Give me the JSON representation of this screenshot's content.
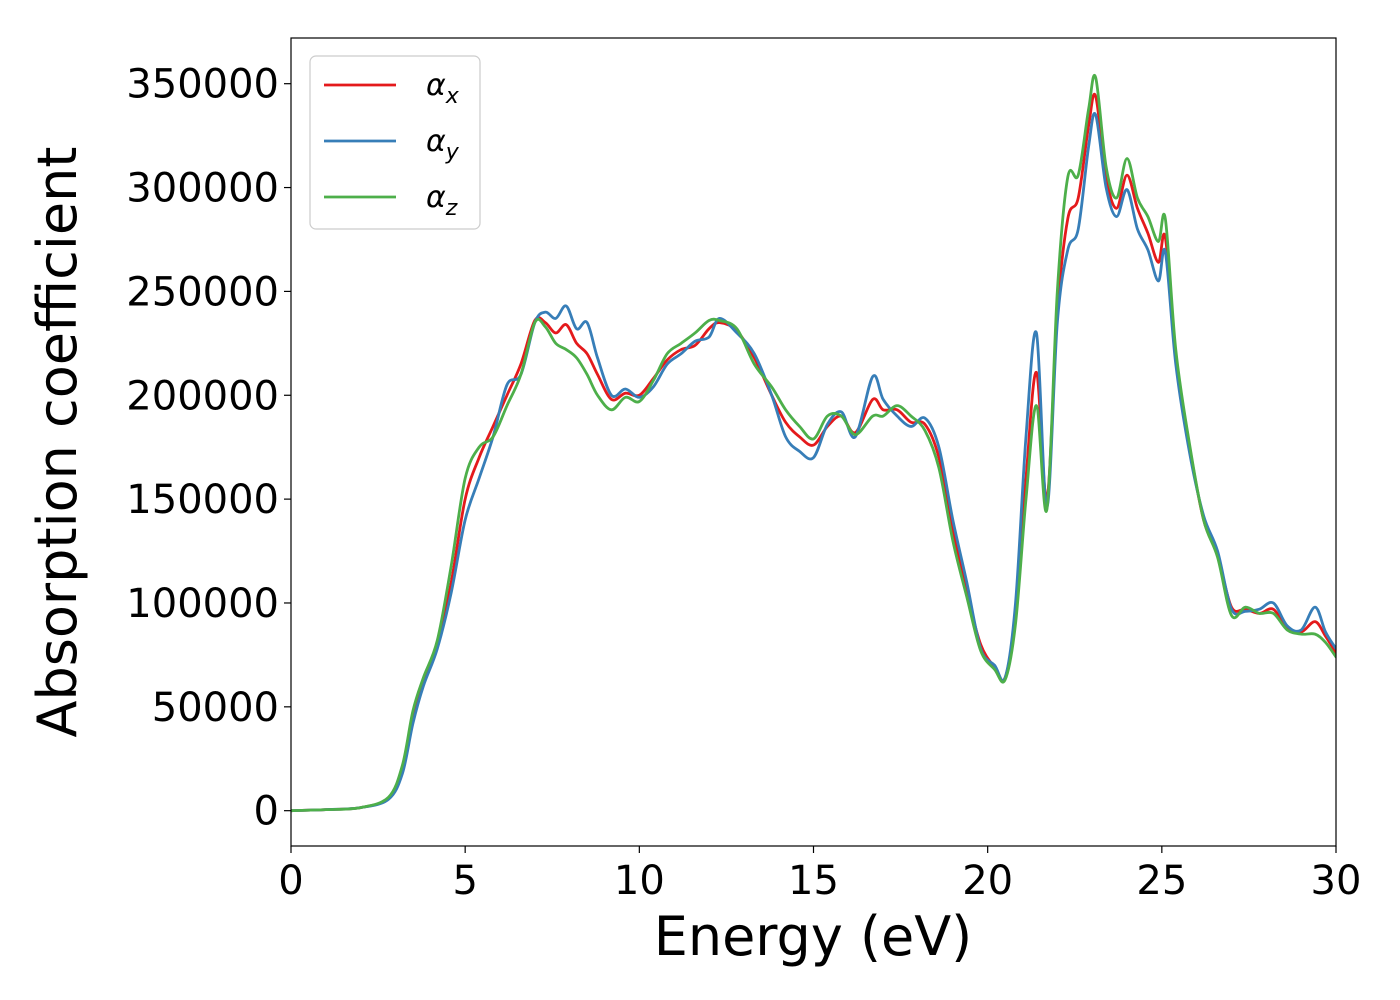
{
  "chart_data": {
    "type": "line",
    "title": "",
    "xlabel": "Energy (eV)",
    "ylabel": "Absorption coefficient",
    "xlim": [
      0,
      30
    ],
    "ylim": [
      -17000,
      372000
    ],
    "xticks": [
      0,
      5,
      10,
      15,
      20,
      25,
      30
    ],
    "xtick_labels": [
      "0",
      "5",
      "10",
      "15",
      "20",
      "25",
      "30"
    ],
    "yticks": [
      0,
      50000,
      100000,
      150000,
      200000,
      250000,
      300000,
      350000
    ],
    "ytick_labels": [
      "0",
      "50000",
      "100000",
      "150000",
      "200000",
      "250000",
      "300000",
      "350000"
    ],
    "grid": false,
    "legend_position": "upper-left",
    "series": [
      {
        "name": "α",
        "subscript": "x",
        "color": "#e41a1c",
        "x": [
          0,
          1,
          2,
          2.8,
          3.2,
          3.5,
          3.8,
          4.2,
          4.6,
          5.0,
          5.4,
          5.8,
          6.2,
          6.6,
          7.0,
          7.3,
          7.6,
          7.9,
          8.2,
          8.5,
          8.8,
          9.2,
          9.6,
          10.0,
          10.4,
          10.8,
          11.2,
          11.6,
          12.0,
          12.3,
          12.8,
          13.3,
          13.8,
          14.2,
          14.6,
          15.0,
          15.4,
          15.8,
          16.2,
          16.7,
          17.0,
          17.4,
          17.8,
          18.2,
          18.6,
          19.0,
          19.4,
          19.8,
          20.2,
          20.5,
          20.8,
          21.1,
          21.4,
          21.7,
          22.0,
          22.3,
          22.6,
          22.9,
          23.1,
          23.4,
          23.7,
          24.0,
          24.3,
          24.6,
          24.9,
          25.1,
          25.4,
          25.8,
          26.2,
          26.6,
          27.0,
          27.4,
          27.8,
          28.2,
          28.6,
          29.0,
          29.4,
          29.7,
          30.0
        ],
        "y": [
          0,
          500,
          1500,
          6000,
          20000,
          45000,
          62000,
          80000,
          110000,
          150000,
          170000,
          185000,
          200000,
          215000,
          236000,
          235000,
          230000,
          234000,
          225000,
          220000,
          210000,
          198000,
          201000,
          200000,
          208000,
          217000,
          222000,
          224000,
          232000,
          235000,
          231000,
          218000,
          200000,
          187000,
          180000,
          176000,
          185000,
          190000,
          182000,
          198000,
          193000,
          193000,
          187000,
          186000,
          170000,
          135000,
          105000,
          80000,
          69000,
          64000,
          95000,
          160000,
          211000,
          150000,
          240000,
          285000,
          295000,
          330000,
          344000,
          305000,
          290000,
          306000,
          290000,
          278000,
          264000,
          276000,
          220000,
          175000,
          140000,
          123000,
          98000,
          97000,
          95000,
          97000,
          88000,
          86000,
          91000,
          84000,
          76000
        ]
      },
      {
        "name": "α",
        "subscript": "y",
        "color": "#377eb8",
        "x": [
          0,
          1,
          2,
          2.8,
          3.2,
          3.5,
          3.8,
          4.2,
          4.6,
          5.0,
          5.4,
          5.8,
          6.2,
          6.6,
          7.0,
          7.3,
          7.6,
          7.9,
          8.2,
          8.5,
          8.8,
          9.2,
          9.6,
          10.0,
          10.4,
          10.8,
          11.2,
          11.6,
          12.0,
          12.3,
          12.8,
          13.3,
          13.8,
          14.2,
          14.6,
          15.0,
          15.4,
          15.8,
          16.2,
          16.7,
          17.0,
          17.4,
          17.8,
          18.2,
          18.6,
          19.0,
          19.4,
          19.8,
          20.2,
          20.5,
          20.8,
          21.1,
          21.4,
          21.7,
          22.0,
          22.3,
          22.6,
          22.9,
          23.1,
          23.4,
          23.7,
          24.0,
          24.3,
          24.6,
          24.9,
          25.1,
          25.4,
          25.8,
          26.2,
          26.6,
          27.0,
          27.4,
          27.8,
          28.2,
          28.6,
          29.0,
          29.4,
          29.7,
          30.0
        ],
        "y": [
          0,
          500,
          1500,
          5500,
          18000,
          42000,
          60000,
          78000,
          105000,
          140000,
          160000,
          180000,
          205000,
          210000,
          235000,
          240000,
          237000,
          243000,
          232000,
          235000,
          218000,
          200000,
          203000,
          199000,
          204000,
          215000,
          220000,
          226000,
          228000,
          237000,
          230000,
          220000,
          200000,
          180000,
          173000,
          170000,
          186000,
          192000,
          180000,
          209000,
          198000,
          190000,
          185000,
          189000,
          175000,
          140000,
          110000,
          78000,
          70000,
          64000,
          100000,
          180000,
          230000,
          146000,
          235000,
          270000,
          280000,
          320000,
          335000,
          300000,
          286000,
          299000,
          280000,
          270000,
          255000,
          269000,
          215000,
          172000,
          142000,
          125000,
          97000,
          96000,
          97000,
          100000,
          89000,
          87000,
          98000,
          86000,
          78000
        ]
      },
      {
        "name": "α",
        "subscript": "z",
        "color": "#4daf4a",
        "x": [
          0,
          1,
          2,
          2.8,
          3.2,
          3.5,
          3.8,
          4.2,
          4.6,
          5.0,
          5.4,
          5.8,
          6.2,
          6.6,
          7.0,
          7.3,
          7.6,
          7.9,
          8.2,
          8.5,
          8.8,
          9.2,
          9.6,
          10.0,
          10.4,
          10.8,
          11.2,
          11.6,
          12.0,
          12.3,
          12.8,
          13.3,
          13.8,
          14.2,
          14.6,
          15.0,
          15.4,
          15.8,
          16.2,
          16.7,
          17.0,
          17.4,
          17.8,
          18.2,
          18.6,
          19.0,
          19.4,
          19.8,
          20.2,
          20.5,
          20.8,
          21.1,
          21.4,
          21.7,
          22.0,
          22.3,
          22.6,
          22.9,
          23.1,
          23.4,
          23.7,
          24.0,
          24.3,
          24.6,
          24.9,
          25.1,
          25.4,
          25.8,
          26.2,
          26.6,
          27.0,
          27.4,
          27.8,
          28.2,
          28.6,
          29.0,
          29.4,
          29.7,
          30.0
        ],
        "y": [
          0,
          500,
          1500,
          6500,
          22000,
          48000,
          64000,
          82000,
          118000,
          160000,
          175000,
          180000,
          195000,
          210000,
          235000,
          233000,
          225000,
          222000,
          218000,
          210000,
          200000,
          193000,
          199000,
          197000,
          207000,
          220000,
          225000,
          230000,
          236000,
          236000,
          232000,
          215000,
          204000,
          193000,
          185000,
          179000,
          190000,
          190000,
          181000,
          190000,
          190000,
          195000,
          190000,
          183000,
          165000,
          130000,
          103000,
          77000,
          68000,
          63000,
          90000,
          150000,
          195000,
          145000,
          250000,
          305000,
          306000,
          338000,
          353000,
          310000,
          295000,
          314000,
          295000,
          286000,
          274000,
          285000,
          222000,
          176000,
          140000,
          122000,
          94000,
          98000,
          95000,
          95000,
          87000,
          85000,
          85000,
          81000,
          74000
        ]
      }
    ]
  }
}
